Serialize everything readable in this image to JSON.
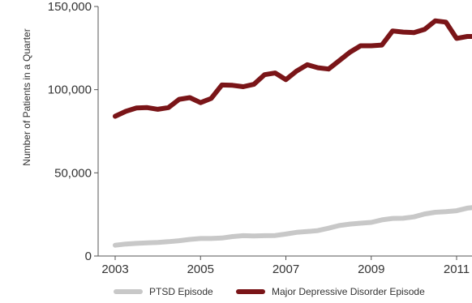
{
  "chart_data": {
    "type": "line",
    "ylabel": "Number of Patients in a Quarter",
    "ylim": [
      0,
      150000
    ],
    "y_ticks": [
      {
        "value": 0,
        "label": "0"
      },
      {
        "value": 50000,
        "label": "50,000"
      },
      {
        "value": 100000,
        "label": "100,000"
      },
      {
        "value": 150000,
        "label": "150,000"
      }
    ],
    "x_range": [
      2002.75,
      2011.5
    ],
    "x_ticks": [
      {
        "value": 2003,
        "label": "2003"
      },
      {
        "value": 2005,
        "label": "2005"
      },
      {
        "value": 2007,
        "label": "2007"
      },
      {
        "value": 2009,
        "label": "2009"
      },
      {
        "value": 2011,
        "label": "2011"
      }
    ],
    "x": [
      2003.0,
      2003.25,
      2003.5,
      2003.75,
      2004.0,
      2004.25,
      2004.5,
      2004.75,
      2005.0,
      2005.25,
      2005.5,
      2005.75,
      2006.0,
      2006.25,
      2006.5,
      2006.75,
      2007.0,
      2007.25,
      2007.5,
      2007.75,
      2008.0,
      2008.25,
      2008.5,
      2008.75,
      2009.0,
      2009.25,
      2009.5,
      2009.75,
      2010.0,
      2010.25,
      2010.5,
      2010.75,
      2011.0,
      2011.25,
      2011.5
    ],
    "series": [
      {
        "name": "PTSD Episode",
        "color": "#c8c8c8",
        "values": [
          6500,
          7200,
          7600,
          7900,
          8200,
          8600,
          9200,
          10000,
          10500,
          10500,
          10800,
          11700,
          12200,
          12100,
          12200,
          12300,
          13200,
          14200,
          14700,
          15300,
          16700,
          18300,
          19200,
          19700,
          20200,
          21700,
          22600,
          22700,
          23500,
          25300,
          26300,
          26700,
          27200,
          28800,
          29400
        ]
      },
      {
        "name": "Major Depressive Disorder Episode",
        "color": "#7a1518",
        "values": [
          84000,
          87000,
          89000,
          89200,
          88200,
          89200,
          94200,
          95200,
          92200,
          94700,
          102800,
          102600,
          101800,
          103200,
          109000,
          110000,
          106000,
          111200,
          115000,
          113200,
          112400,
          117400,
          122500,
          126400,
          126400,
          126800,
          135300,
          134600,
          134300,
          136200,
          141400,
          140600,
          130800,
          132000,
          132000
        ]
      }
    ],
    "legend": {
      "placement": "bottom-center",
      "orientation": "horizontal"
    },
    "grid": false
  }
}
